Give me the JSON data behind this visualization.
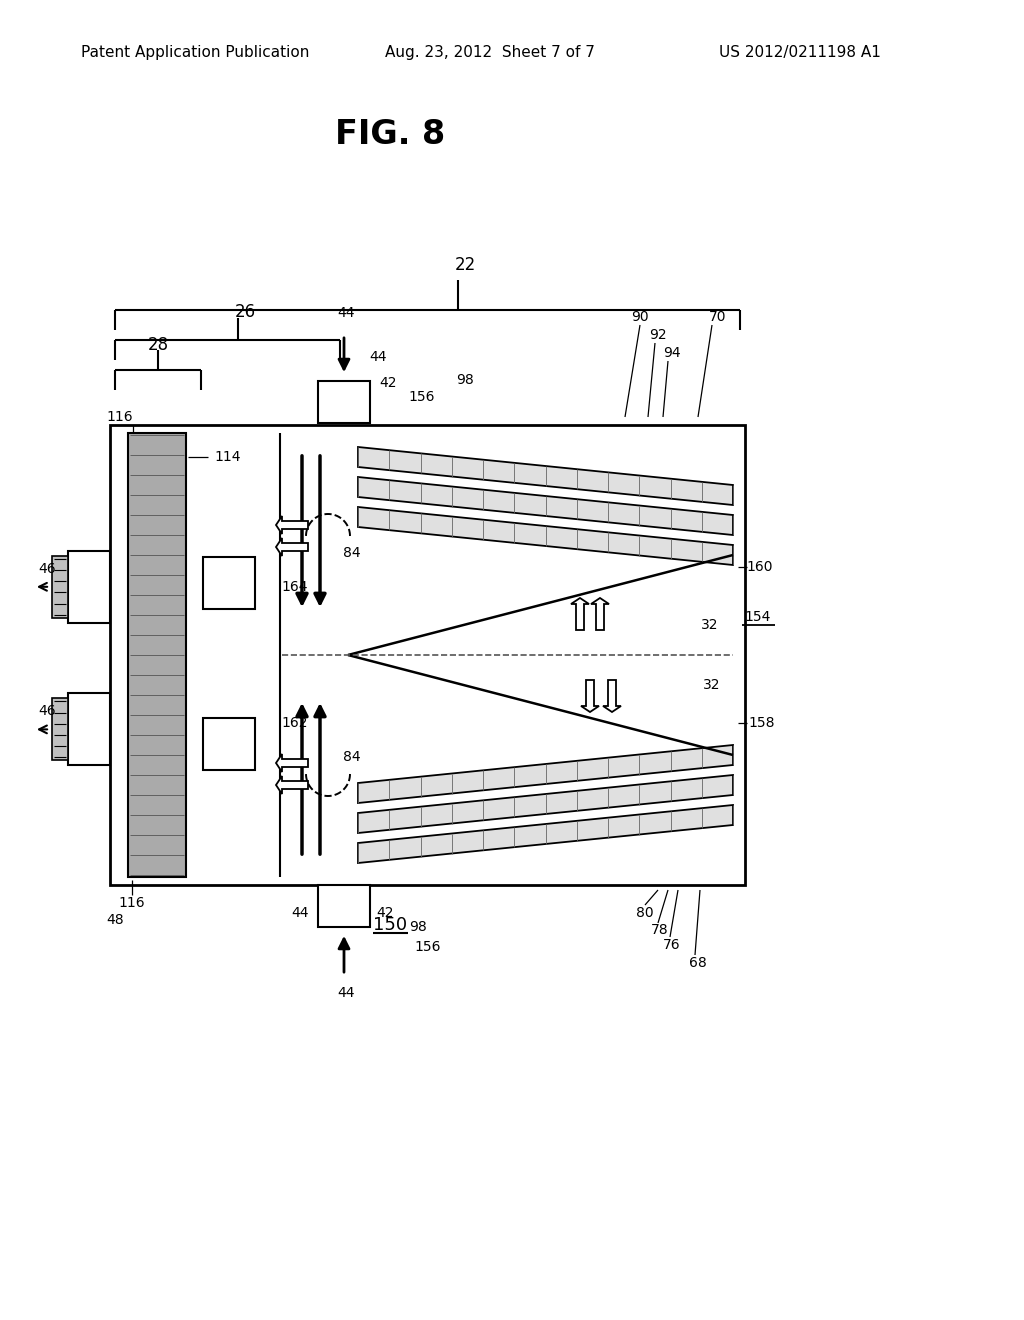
{
  "bg_color": "#ffffff",
  "line_color": "#000000",
  "header_left": "Patent Application Publication",
  "header_mid": "Aug. 23, 2012  Sheet 7 of 7",
  "header_right": "US 2012/0211198 A1",
  "fig_label": "FIG. 8",
  "bottom_label": "150",
  "page_width": 10.24,
  "page_height": 13.2
}
